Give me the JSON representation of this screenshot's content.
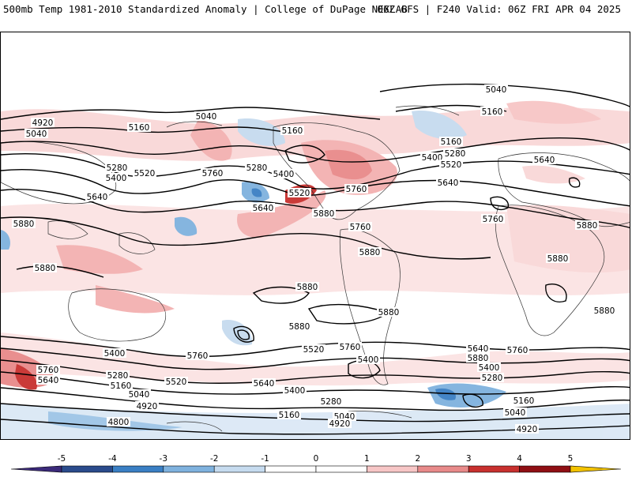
{
  "header": {
    "title_left": "500mb Temp 1981-2010 Standardized Anomaly | College of DuPage NEXLAB",
    "title_right": "06Z GFS | F240 Valid: 06Z FRI APR 04 2025"
  },
  "colorbar": {
    "ticks": [
      "-5",
      "-4",
      "-3",
      "-2",
      "-1",
      "0",
      "1",
      "2",
      "3",
      "4",
      "5"
    ],
    "colors": [
      "#3b2a7a",
      "#2a4b8c",
      "#3a7fc4",
      "#7fb2de",
      "#c6dbef",
      "#ffffff",
      "#ffffff",
      "#f7c6c6",
      "#e88a8a",
      "#c8302e",
      "#8f0f14",
      "#f2c200"
    ]
  },
  "contours": {
    "labels": [
      "5040",
      "5160",
      "4920",
      "5040",
      "5160",
      "5400",
      "5520",
      "5280",
      "5760",
      "5640",
      "5880",
      "5280",
      "5160",
      "5400",
      "5520",
      "5640",
      "5760",
      "5880",
      "5040",
      "5160",
      "5280",
      "5400",
      "5520",
      "5640",
      "5760",
      "5880",
      "5880",
      "5880",
      "5880",
      "5880",
      "5880",
      "5760",
      "5640",
      "5760",
      "5400",
      "5280",
      "5160",
      "5040",
      "4920",
      "4800",
      "5520",
      "5640",
      "5760",
      "5400",
      "5280",
      "5160",
      "5040",
      "4920",
      "4800",
      "5400",
      "5520",
      "5640",
      "5760",
      "5400",
      "5280",
      "5160",
      "5040",
      "4920",
      "5880",
      "5640",
      "5760",
      "5880",
      "5880"
    ]
  }
}
